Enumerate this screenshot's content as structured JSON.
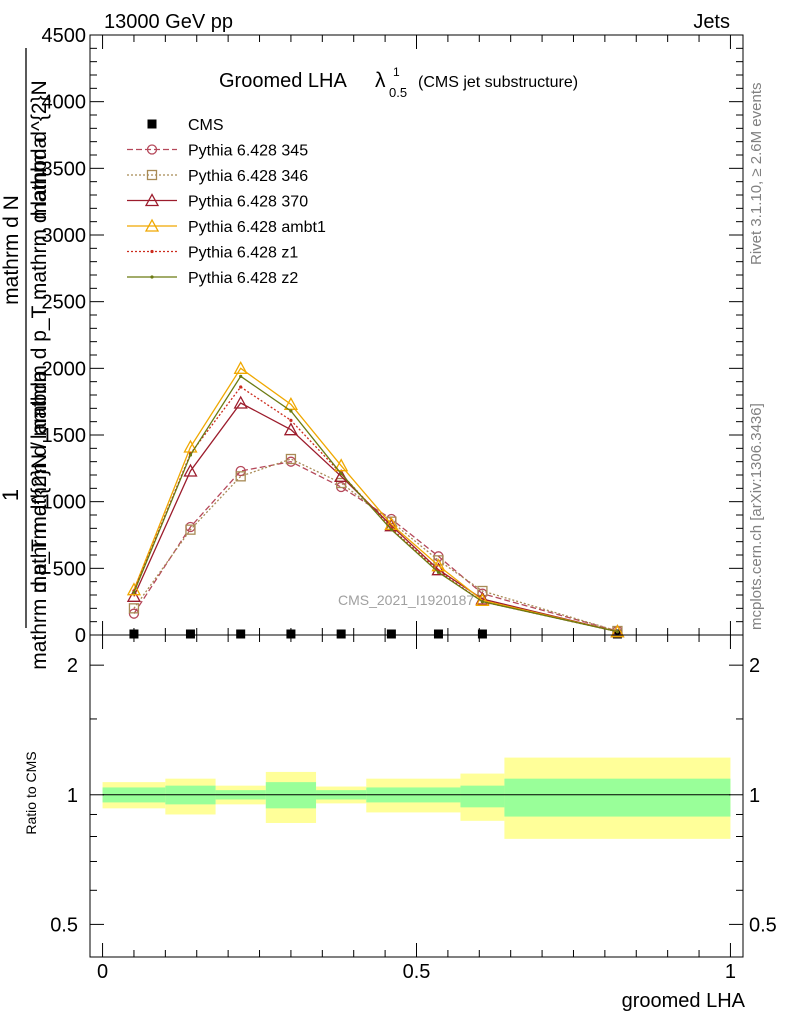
{
  "header": {
    "energy_label": "13000 GeV pp",
    "category_label": "Jets"
  },
  "main_plot": {
    "title_prefix": "Groomed LHA",
    "title_lambda": "λ",
    "title_sup": "1",
    "title_sub": "0.5",
    "title_suffix": "(CMS jet substructure)",
    "watermark": "CMS_2021_I1920187",
    "ylabel_top": "1",
    "ylabel_garbled_1": "mathrm d N",
    "ylabel_garbled_2": "mathrm d^{2}N / mathrm d p_T mathrm d lambda",
    "ylabel_garbled_3": "mathrm d^{2}N",
    "ylabel_garbled_4": "mathrm d p_T mathrm d lambda"
  },
  "side_labels": {
    "rivet": "Rivet 3.1.10, ≥ 2.6M events",
    "mcplots": "mcplots.cern.ch [arXiv:1306.3436]"
  },
  "ratio_plot": {
    "ylabel": "Ratio to CMS"
  },
  "chart_data": [
    {
      "type": "line",
      "title": "Groomed LHA λ^1_0.5 (CMS jet substructure)",
      "xlabel": "groomed LHA",
      "ylabel": "1 / (mathrm d N / mathrm d lambda) ...",
      "xlim": [
        -0.02,
        1.02
      ],
      "ylim": [
        0,
        4500
      ],
      "y_ticks": [
        0,
        500,
        1000,
        1500,
        2000,
        2500,
        3000,
        3500,
        4000,
        4500
      ],
      "y_tick_labels": [
        "0",
        "500",
        "1000",
        "1500",
        "2000",
        "2500",
        "3000",
        "3500",
        "4000",
        "4500"
      ],
      "x": [
        0.05,
        0.14,
        0.22,
        0.3,
        0.38,
        0.46,
        0.535,
        0.605,
        0.82
      ],
      "series": [
        {
          "name": "CMS",
          "color": "#000000",
          "marker": "square",
          "dash": "none",
          "values": [
            5,
            5,
            5,
            10,
            5,
            5,
            5,
            5,
            5
          ]
        },
        {
          "name": "Pythia 6.428 345",
          "color": "#b5485a",
          "marker": "circle",
          "dash": "6,3",
          "values": [
            160,
            810,
            1230,
            1300,
            1110,
            870,
            590,
            310,
            30
          ]
        },
        {
          "name": "Pythia 6.428 346",
          "color": "#a88a55",
          "marker": "square-open",
          "dash": "2,2",
          "values": [
            200,
            790,
            1190,
            1320,
            1140,
            850,
            560,
            330,
            30
          ]
        },
        {
          "name": "Pythia 6.428 370",
          "color": "#9c1c2c",
          "marker": "triangle-open",
          "dash": "none",
          "values": [
            290,
            1230,
            1740,
            1540,
            1190,
            820,
            490,
            270,
            25
          ]
        },
        {
          "name": "Pythia 6.428 ambt1",
          "color": "#f0a800",
          "marker": "triangle-open",
          "dash": "none",
          "values": [
            340,
            1410,
            2000,
            1730,
            1270,
            830,
            520,
            260,
            25
          ]
        },
        {
          "name": "Pythia 6.428 z1",
          "color": "#cc2b1d",
          "marker": "dot",
          "dash": "2,2",
          "values": [
            330,
            1360,
            1860,
            1610,
            1210,
            800,
            480,
            250,
            25
          ]
        },
        {
          "name": "Pythia 6.428 z2",
          "color": "#6b7a12",
          "marker": "dot",
          "dash": "none",
          "values": [
            320,
            1350,
            1940,
            1680,
            1210,
            790,
            470,
            250,
            25
          ]
        }
      ]
    },
    {
      "type": "area",
      "ylabel": "Ratio to CMS",
      "xlabel": "groomed LHA",
      "xlim": [
        -0.02,
        1.02
      ],
      "ylim": [
        0.42,
        2.35
      ],
      "log_y": true,
      "x_ticks": [
        0,
        0.5,
        1
      ],
      "x_tick_labels": [
        "0",
        "0.5",
        "1"
      ],
      "y_ticks": [
        0.5,
        1,
        2
      ],
      "y_tick_labels": [
        "0.5",
        "1",
        "2"
      ],
      "bins": [
        {
          "lo": 0.0,
          "hi": 0.1,
          "inner": [
            0.96,
            1.04
          ],
          "outer": [
            0.93,
            1.07
          ]
        },
        {
          "lo": 0.1,
          "hi": 0.18,
          "inner": [
            0.95,
            1.05
          ],
          "outer": [
            0.9,
            1.09
          ]
        },
        {
          "lo": 0.18,
          "hi": 0.26,
          "inner": [
            0.975,
            1.025
          ],
          "outer": [
            0.95,
            1.05
          ]
        },
        {
          "lo": 0.26,
          "hi": 0.34,
          "inner": [
            0.93,
            1.07
          ],
          "outer": [
            0.86,
            1.13
          ]
        },
        {
          "lo": 0.34,
          "hi": 0.42,
          "inner": [
            0.975,
            1.025
          ],
          "outer": [
            0.955,
            1.045
          ]
        },
        {
          "lo": 0.42,
          "hi": 0.5,
          "inner": [
            0.96,
            1.04
          ],
          "outer": [
            0.91,
            1.09
          ]
        },
        {
          "lo": 0.5,
          "hi": 0.57,
          "inner": [
            0.96,
            1.04
          ],
          "outer": [
            0.91,
            1.09
          ]
        },
        {
          "lo": 0.57,
          "hi": 0.64,
          "inner": [
            0.935,
            1.05
          ],
          "outer": [
            0.87,
            1.12
          ]
        },
        {
          "lo": 0.64,
          "hi": 1.0,
          "inner": [
            0.89,
            1.09
          ],
          "outer": [
            0.79,
            1.22
          ]
        }
      ],
      "inner_color": "#99ff99",
      "outer_color": "#ffff99",
      "reference": 1
    }
  ]
}
